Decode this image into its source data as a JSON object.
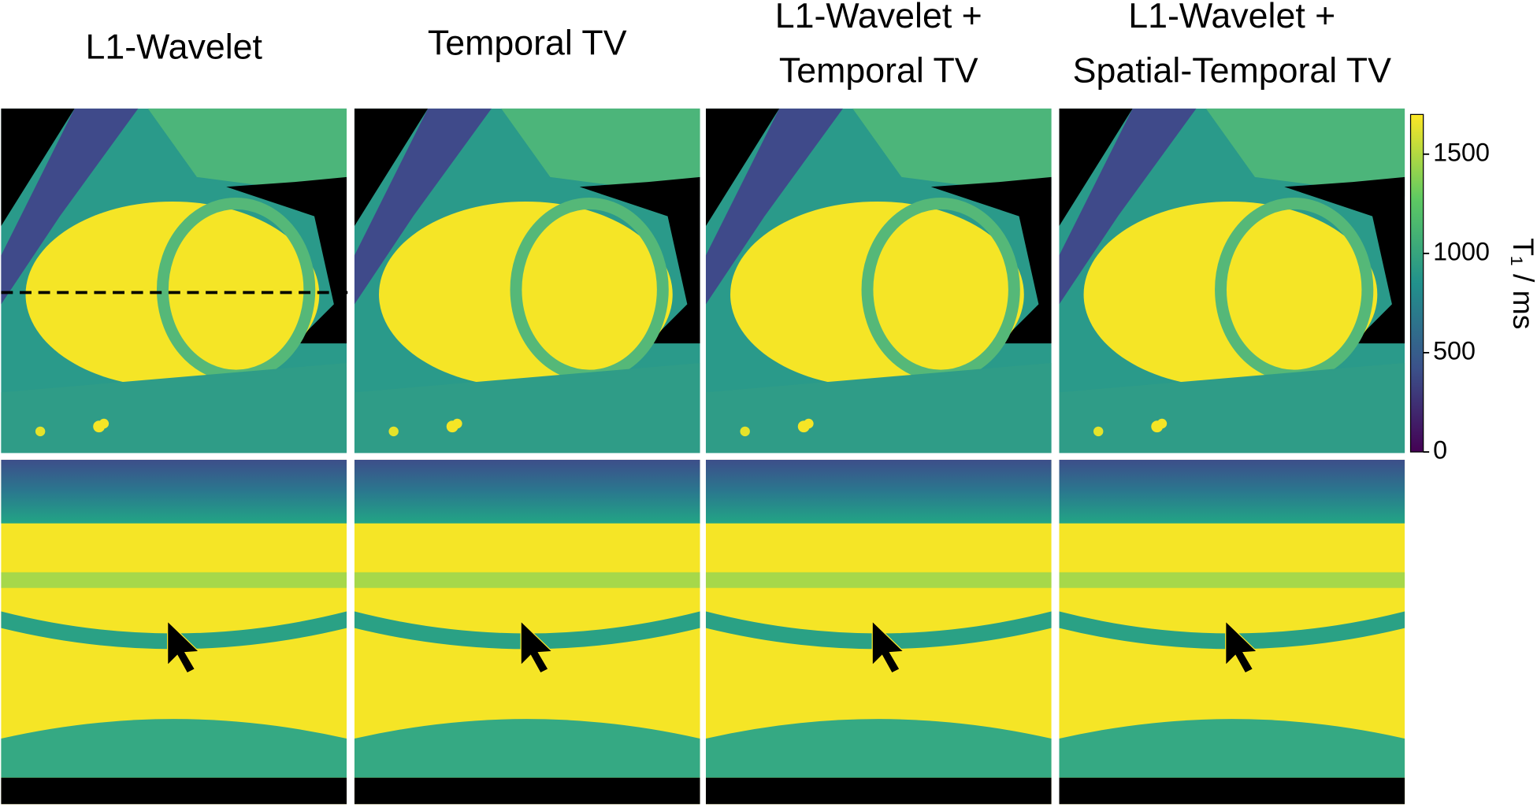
{
  "columns": [
    {
      "title": [
        "L1-Wavelet"
      ]
    },
    {
      "title": [
        "Temporal TV"
      ]
    },
    {
      "title": [
        "L1-Wavelet +",
        "Temporal TV"
      ]
    },
    {
      "title": [
        "L1-Wavelet +",
        "Spatial-Temporal TV"
      ]
    }
  ],
  "colorbar": {
    "label": "T₁ / ms",
    "lim": [
      0,
      1700
    ],
    "ticks": [
      0,
      500,
      1000,
      1500
    ]
  }
}
